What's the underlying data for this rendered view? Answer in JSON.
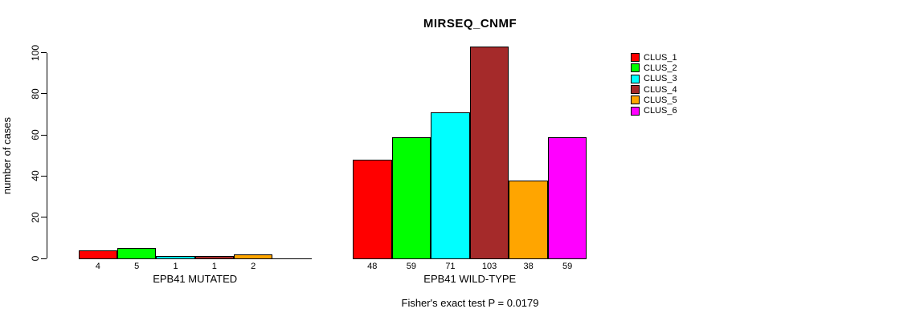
{
  "chart_data": {
    "type": "bar",
    "title": "MIRSEQ_CNMF",
    "ylabel": "number of cases",
    "ylim": [
      0,
      100
    ],
    "yticks": [
      0,
      20,
      40,
      60,
      80,
      100
    ],
    "grid": false,
    "legend_position": "top-right",
    "clusters": [
      {
        "name": "CLUS_1",
        "color": "#FF0000"
      },
      {
        "name": "CLUS_2",
        "color": "#00FF00"
      },
      {
        "name": "CLUS_3",
        "color": "#00FFFF"
      },
      {
        "name": "CLUS_4",
        "color": "#A52A2A"
      },
      {
        "name": "CLUS_5",
        "color": "#FFA500"
      },
      {
        "name": "CLUS_6",
        "color": "#FF00FF"
      }
    ],
    "groups": [
      {
        "label": "EPB41 MUTATED",
        "values": [
          4,
          5,
          1,
          1,
          2,
          0
        ]
      },
      {
        "label": "EPB41 WILD-TYPE",
        "values": [
          48,
          59,
          71,
          103,
          38,
          59
        ]
      }
    ],
    "annotation": "Fisher's exact test P = 0.0179"
  }
}
